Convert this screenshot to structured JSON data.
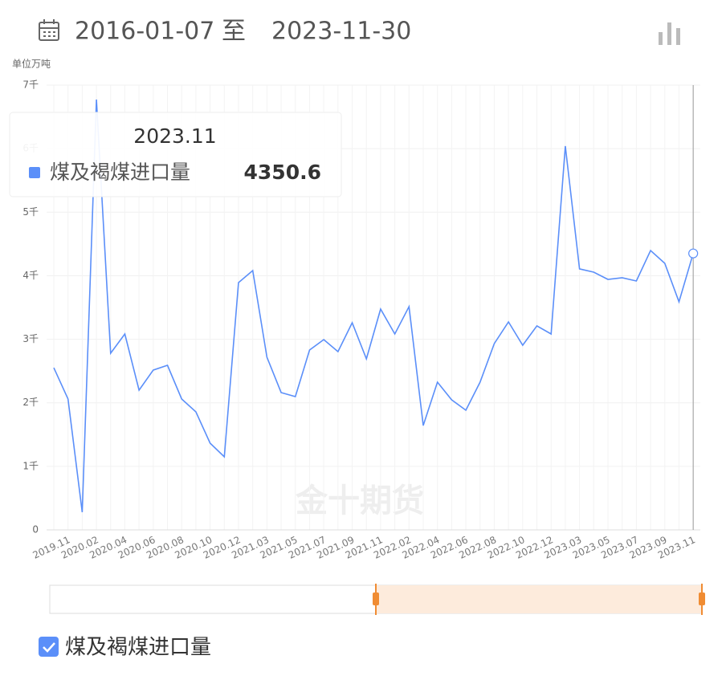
{
  "chart_data": {
    "type": "line",
    "header": {
      "start": "2016-01-07",
      "separator": "至",
      "end": "2023-11-30"
    },
    "unit": "单位万吨",
    "watermark": "金十期货",
    "categories": [
      null,
      "2019.11",
      null,
      "2020.02",
      null,
      "2020.04",
      null,
      "2020.06",
      null,
      "2020.08",
      null,
      "2020.10",
      null,
      "2020.12",
      null,
      "2021.03",
      null,
      "2021.05",
      null,
      "2021.07",
      null,
      "2021.09",
      null,
      "2021.11",
      null,
      "2022.02",
      null,
      "2022.04",
      null,
      "2022.06",
      null,
      "2022.08",
      null,
      "2022.10",
      null,
      "2022.12",
      null,
      "2023.03",
      null,
      "2023.05",
      null,
      "2023.07",
      null,
      "2023.09",
      null,
      "2023.11"
    ],
    "series": [
      {
        "name": "煤及褐煤进口量",
        "color": "#5b8ff9",
        "values": [
          2552,
          2060,
          278,
          6773,
          2780,
          3083,
          2199,
          2515,
          2590,
          2060,
          1857,
          1365,
          1150,
          3892,
          4081,
          2717,
          2161,
          2098,
          2830,
          2995,
          2805,
          3260,
          2691,
          3475,
          3083,
          3513,
          1643,
          2325,
          2047,
          1883,
          2325,
          2932,
          3273,
          2906,
          3210,
          3083,
          6040,
          4107,
          4056,
          3942,
          3968,
          3917,
          4397,
          4195,
          3589,
          4350.6
        ]
      }
    ],
    "ylim": [
      0,
      7000
    ],
    "yticks": [
      0,
      {
        "value": 1000,
        "label": "1千"
      },
      {
        "value": 2000,
        "label": "2千"
      },
      {
        "value": 3000,
        "label": "3千"
      },
      {
        "value": 4000,
        "label": "4千"
      },
      {
        "value": 5000,
        "label": "5千"
      },
      {
        "value": 6000,
        "label": "6千"
      },
      {
        "value": 7000,
        "label": "7千"
      }
    ],
    "grid": true,
    "tooltip_index": 45
  }
}
